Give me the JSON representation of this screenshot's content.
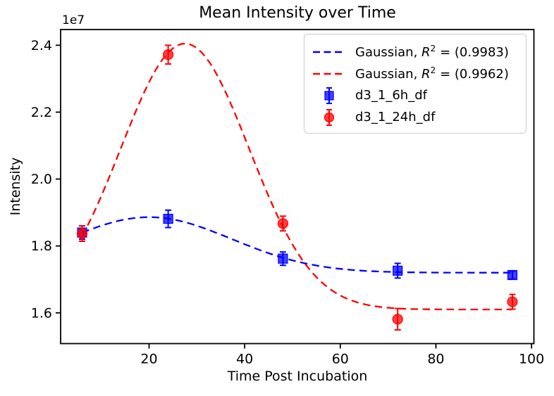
{
  "chart_data": {
    "type": "scatter",
    "title": "Mean Intensity over Time",
    "xlabel": "Time Post Incubation",
    "ylabel": "Intensity",
    "y_offset_label": "1e7",
    "x": [
      6,
      24,
      48,
      72,
      96
    ],
    "series": [
      {
        "name": "d3_1_6h_df",
        "color": "#0000ff",
        "marker": "square",
        "values_e7": [
          1.84,
          1.881,
          1.762,
          1.726,
          1.713
        ],
        "yerr_e7": [
          0.02,
          0.026,
          0.02,
          0.022,
          0.012
        ]
      },
      {
        "name": "d3_1_24h_df",
        "color": "#ff0000",
        "marker": "circle",
        "values_e7": [
          1.837,
          2.372,
          1.867,
          1.581,
          1.633
        ],
        "yerr_e7": [
          0.023,
          0.028,
          0.022,
          0.032,
          0.022
        ]
      }
    ],
    "fits": [
      {
        "label": "Gaussian, R² = (0.9983)",
        "color": "#0000ff",
        "r_squared": 0.9983,
        "gaussian": {
          "base": 1.72,
          "amp": 0.166,
          "center": 20.0,
          "sigma": 17.3
        },
        "x_range": [
          6,
          96
        ]
      },
      {
        "label": "Gaussian, R² = (0.9962)",
        "color": "#ff0000",
        "r_squared": 0.9962,
        "gaussian": {
          "base": 1.61,
          "amp": 0.795,
          "center": 27.5,
          "sigma": 13.4
        },
        "x_range": [
          6,
          96
        ]
      }
    ],
    "axes": {
      "xlim": [
        1.5,
        100.5
      ],
      "ylim_e7": [
        1.508,
        2.447
      ],
      "x_ticks": [
        "20",
        "40",
        "60",
        "80",
        "100"
      ],
      "y_ticks": [
        "1.6",
        "1.8",
        "2.0",
        "2.2",
        "2.4"
      ],
      "grid": false
    },
    "legend": {
      "position": "upper right",
      "items": [
        {
          "kind": "dashed-line",
          "color": "#0000ff",
          "label": "Gaussian, R² = (0.9983)"
        },
        {
          "kind": "dashed-line",
          "color": "#ff0000",
          "label": "Gaussian, R² = (0.9962)"
        },
        {
          "kind": "errorbar-square",
          "color": "#0000ff",
          "label": "d3_1_6h_df"
        },
        {
          "kind": "errorbar-circle",
          "color": "#ff0000",
          "label": "d3_1_24h_df"
        }
      ]
    }
  }
}
